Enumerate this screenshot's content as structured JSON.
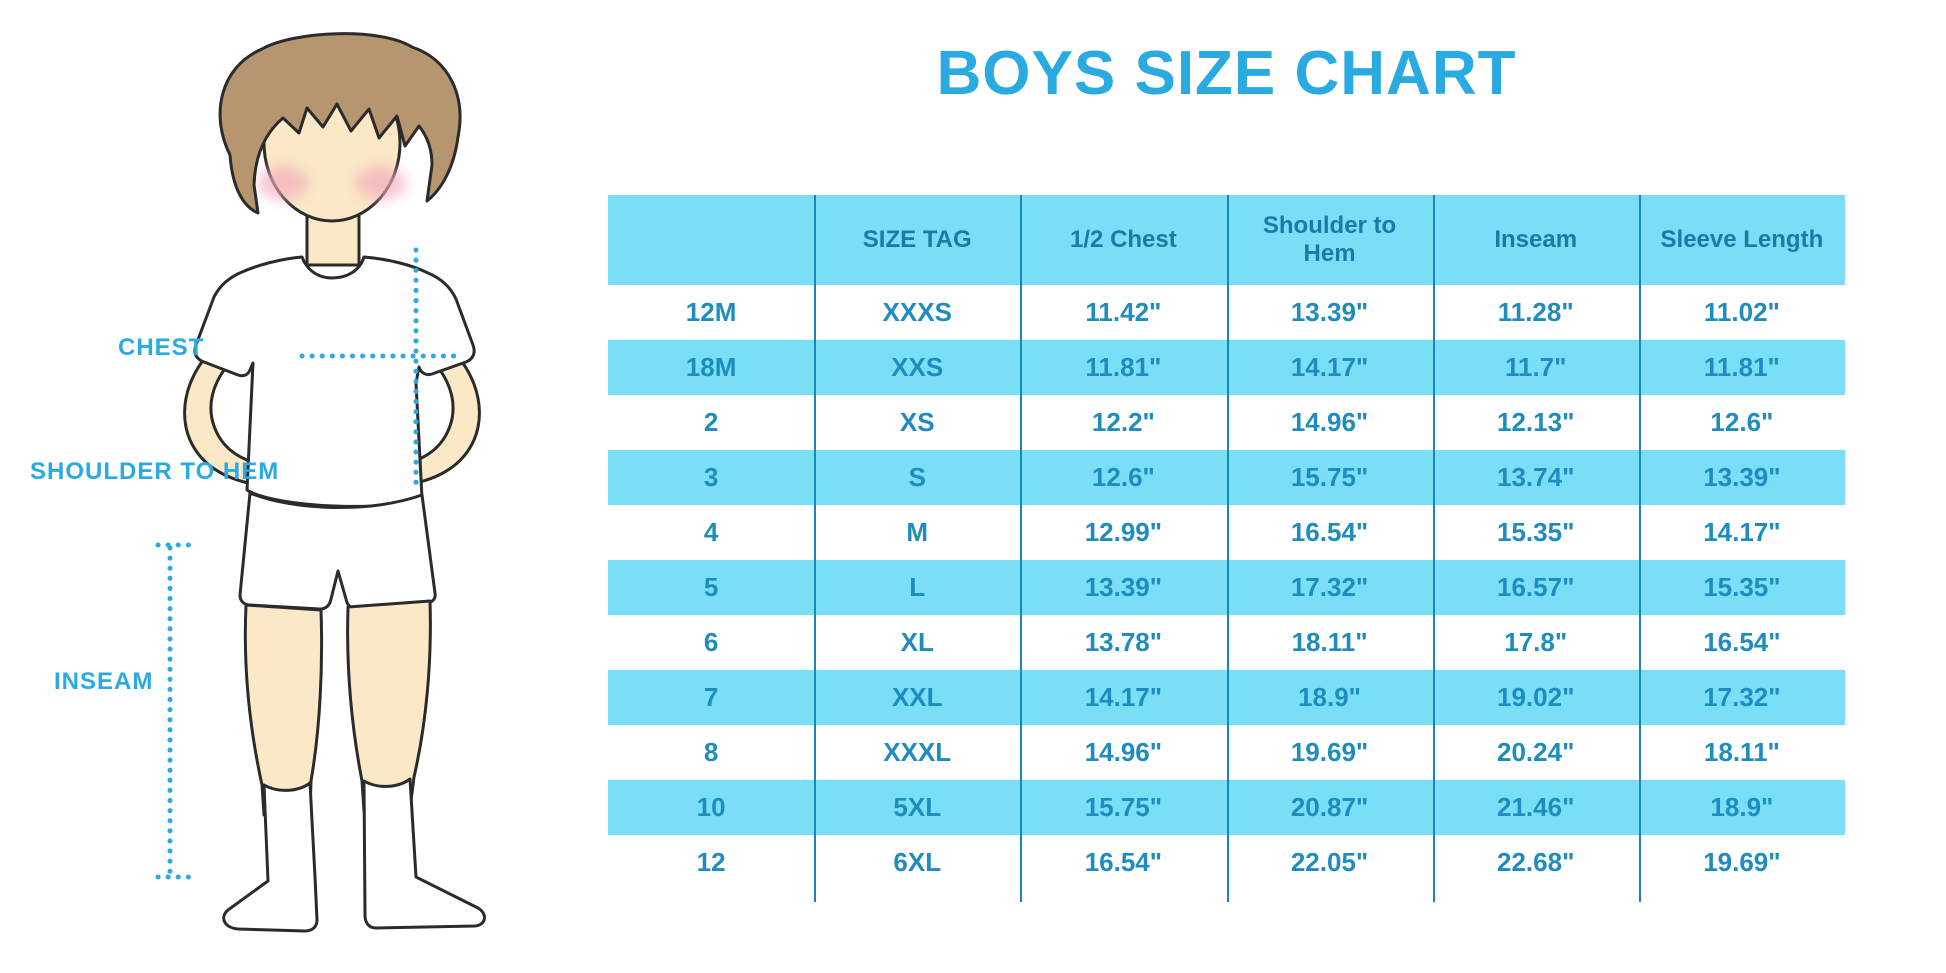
{
  "chart_data": {
    "type": "table",
    "title": "BOYS SIZE CHART",
    "columns": [
      "",
      "SIZE TAG",
      "1/2 Chest",
      "Shoulder to Hem",
      "Inseam",
      "Sleeve Length"
    ],
    "rows": [
      [
        "12M",
        "XXXS",
        "11.42\"",
        "13.39\"",
        "11.28\"",
        "11.02\""
      ],
      [
        "18M",
        "XXS",
        "11.81\"",
        "14.17\"",
        "11.7\"",
        "11.81\""
      ],
      [
        "2",
        "XS",
        "12.2\"",
        "14.96\"",
        "12.13\"",
        "12.6\""
      ],
      [
        "3",
        "S",
        "12.6\"",
        "15.75\"",
        "13.74\"",
        "13.39\""
      ],
      [
        "4",
        "M",
        "12.99\"",
        "16.54\"",
        "15.35\"",
        "14.17\""
      ],
      [
        "5",
        "L",
        "13.39\"",
        "17.32\"",
        "16.57\"",
        "15.35\""
      ],
      [
        "6",
        "XL",
        "13.78\"",
        "18.11\"",
        "17.8\"",
        "16.54\""
      ],
      [
        "7",
        "XXL",
        "14.17\"",
        "18.9\"",
        "19.02\"",
        "17.32\""
      ],
      [
        "8",
        "XXXL",
        "14.96\"",
        "19.69\"",
        "20.24\"",
        "18.11\""
      ],
      [
        "10",
        "5XL",
        "15.75\"",
        "20.87\"",
        "21.46\"",
        "18.9\""
      ],
      [
        "12",
        "6XL",
        "16.54\"",
        "22.05\"",
        "22.68\"",
        "19.69\""
      ]
    ],
    "layout": {
      "row_striping": "alternating white / light blue",
      "grid": "vertical dividers only",
      "units": "inches"
    }
  },
  "figure": {
    "labels": {
      "chest": "CHEST",
      "shoulder_to_hem": "SHOULDER TO HEM",
      "inseam": "INSEAM"
    }
  },
  "colors": {
    "title_blue": "#29ABE2",
    "row_alt": "#79DFF6",
    "header_text": "#187CA6",
    "table_text": "#1E8CBE",
    "divider": "#1787B8",
    "dotted_line": "#29ABE2",
    "skin": "#FBE8C6",
    "hair": "#B5966F",
    "blush": "#F2A9BC",
    "outline": "#2B2B2B"
  }
}
